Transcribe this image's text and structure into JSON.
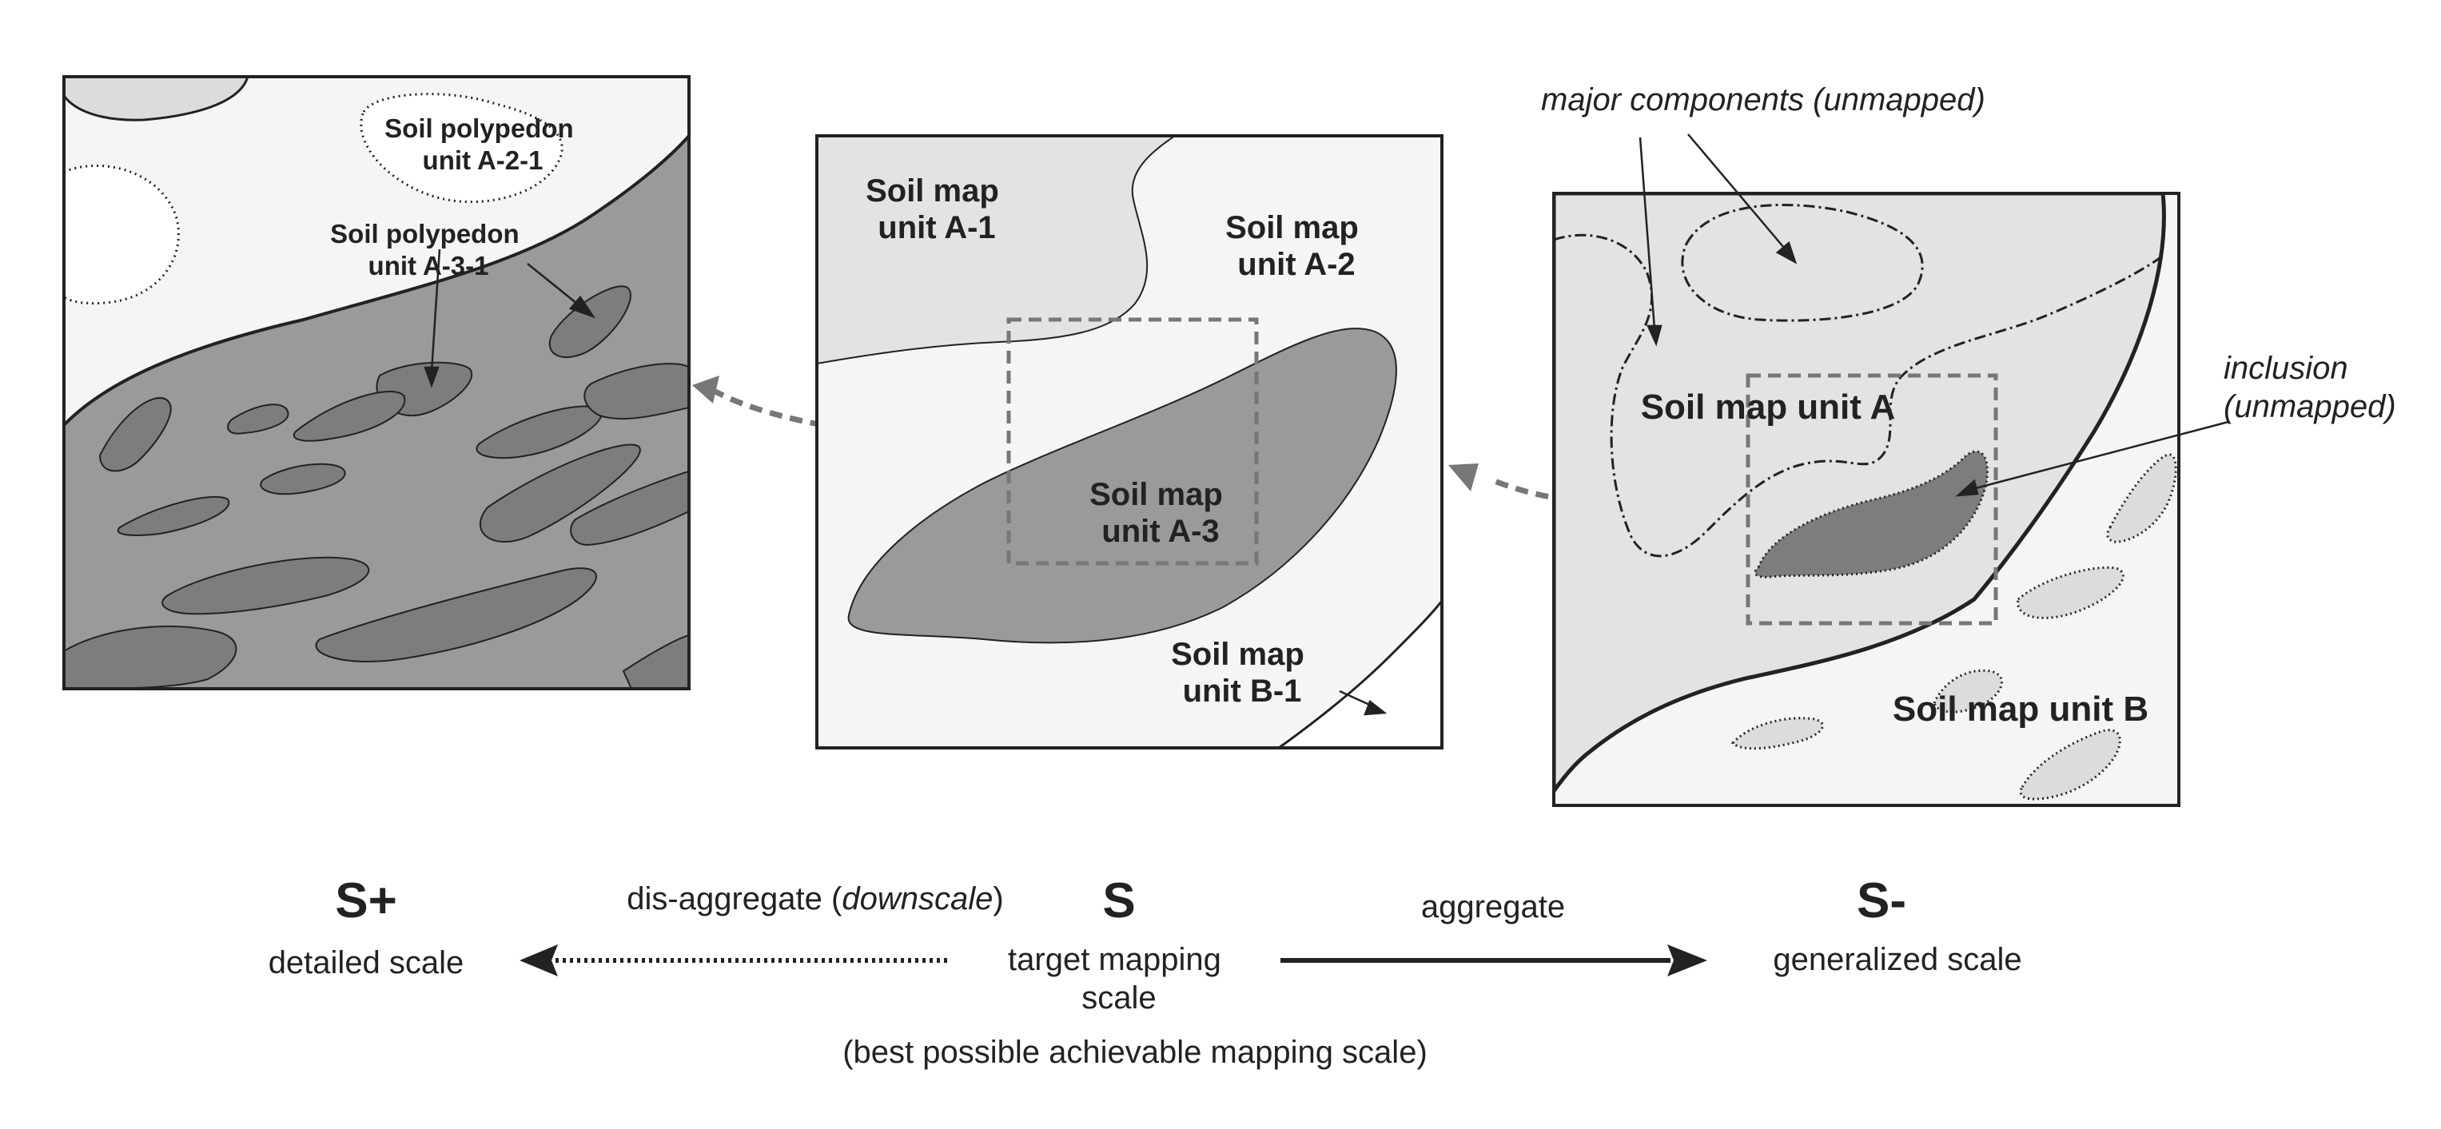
{
  "left_panel": {
    "polypedon_a21": [
      "Soil polypedon",
      "unit A-2-1"
    ],
    "polypedon_a31": [
      "Soil polypedon",
      "unit A-3-1"
    ]
  },
  "middle_panel": {
    "unit_a1": [
      "Soil map",
      "unit A-1"
    ],
    "unit_a2": [
      "Soil map",
      "unit A-2"
    ],
    "unit_a3": [
      "Soil map",
      "unit A-3"
    ],
    "unit_b1": [
      "Soil map",
      "unit B-1"
    ]
  },
  "right_panel": {
    "major_components": "major components (unmapped)",
    "inclusion": [
      "inclusion",
      "(unmapped)"
    ],
    "unit_a": "Soil map unit A",
    "unit_b": "Soil map unit B"
  },
  "scale_bar": {
    "s_plus": "S+",
    "detailed": "detailed scale",
    "disaggregate_prefix": "dis-aggregate (",
    "disaggregate_italic": "downscale",
    "disaggregate_suffix": ")",
    "s": "S",
    "target": [
      "target mapping",
      "scale"
    ],
    "aggregate": "aggregate",
    "s_minus": "S-",
    "generalized": "generalized scale",
    "best": "(best possible achievable mapping scale)"
  },
  "colors": {
    "light_fill": "#f5f5f5",
    "mid_fill": "#e3e3e3",
    "dark_fill": "#9a9a9a",
    "darker_fill": "#7d7d7d",
    "outline": "#222222",
    "dashed_arrow": "#777777"
  }
}
